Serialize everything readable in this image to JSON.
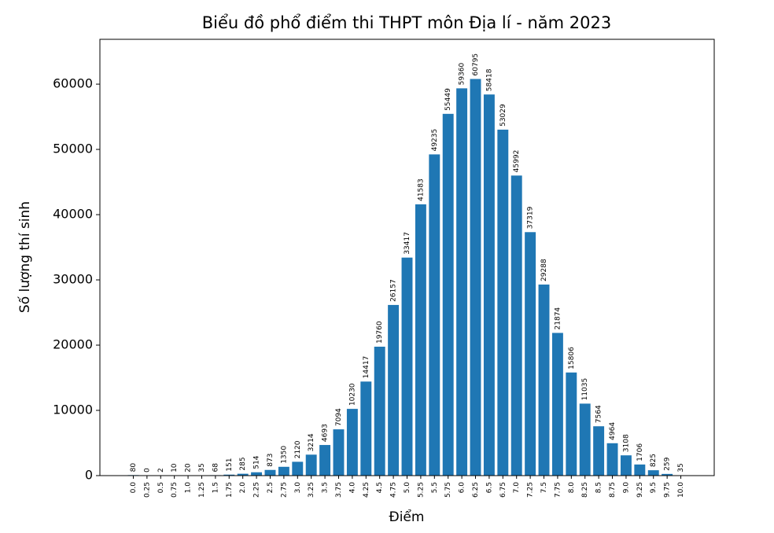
{
  "chart_data": {
    "type": "bar",
    "title": "Biểu đồ phổ điểm thi THPT môn Địa lí - năm 2023",
    "x_label": "Điểm",
    "y_label": "Số lượng thí sinh",
    "categories": [
      "0.0",
      "0.25",
      "0.5",
      "0.75",
      "1.0",
      "1.25",
      "1.5",
      "1.75",
      "2.0",
      "2.25",
      "2.5",
      "2.75",
      "3.0",
      "3.25",
      "3.5",
      "3.75",
      "4.0",
      "4.25",
      "4.5",
      "4.75",
      "5.0",
      "5.25",
      "5.5",
      "5.75",
      "6.0",
      "6.25",
      "6.5",
      "6.75",
      "7.0",
      "7.25",
      "7.5",
      "7.75",
      "8.0",
      "8.25",
      "8.5",
      "8.75",
      "9.0",
      "9.25",
      "9.5",
      "9.75",
      "10.0"
    ],
    "values": [
      80,
      0,
      2,
      10,
      20,
      35,
      68,
      151,
      285,
      514,
      873,
      1350,
      2120,
      3214,
      4693,
      7094,
      10230,
      14417,
      19760,
      26157,
      33417,
      41583,
      49235,
      55449,
      59360,
      60795,
      58418,
      53029,
      45992,
      37319,
      29288,
      21874,
      15806,
      11035,
      7564,
      4964,
      3108,
      1706,
      825,
      259,
      35
    ],
    "color": "#1f77b4",
    "ylim": [
      0,
      66875
    ],
    "yticks": [
      0,
      10000,
      20000,
      30000,
      40000,
      50000,
      60000
    ],
    "grid": false
  }
}
